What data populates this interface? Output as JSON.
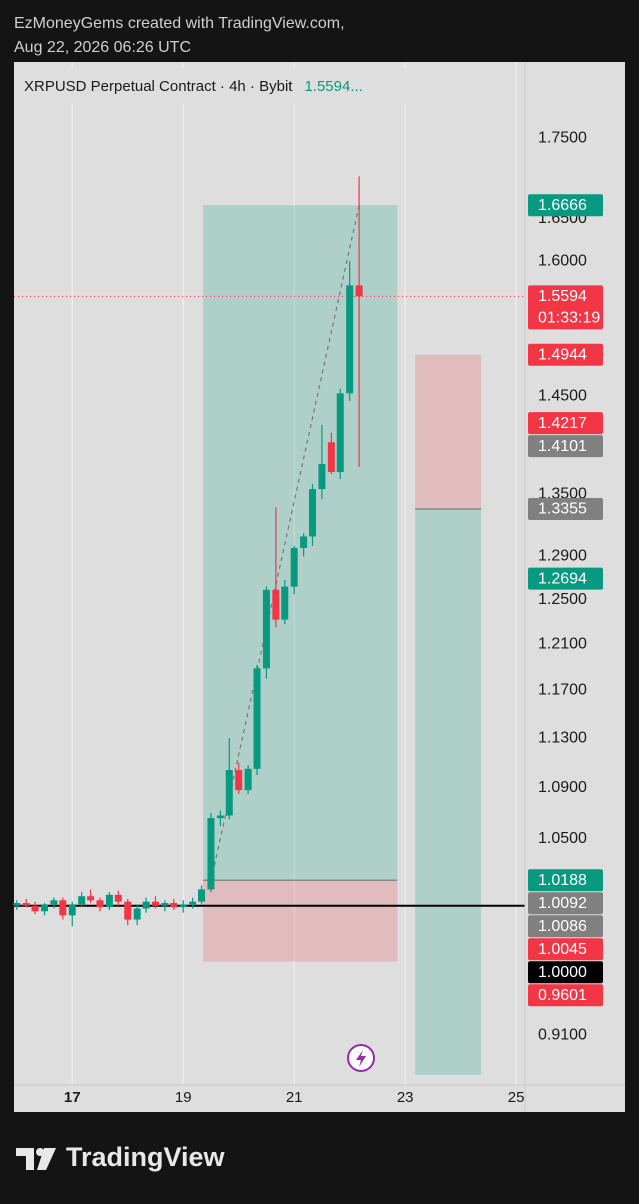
{
  "header": {
    "line1": "EzMoneyGems created with TradingView.com,",
    "line2": "Aug 22, 2026 06:26 UTC"
  },
  "chart_data": {
    "type": "candlestick",
    "title": "XRPUSD Perpetual Contract · 4h · Bybit",
    "legend_price": "1.5594...",
    "up_color": "#089981",
    "down_color": "#f23645",
    "log_scale": true,
    "grid": true,
    "x": [
      16,
      16.17,
      16.33,
      16.5,
      16.67,
      16.83,
      17,
      17.17,
      17.33,
      17.5,
      17.67,
      17.83,
      18,
      18.17,
      18.33,
      18.5,
      18.67,
      18.83,
      19,
      19.17,
      19.33,
      19.5,
      19.67,
      19.83,
      20,
      20.17,
      20.33,
      20.5,
      20.67,
      20.83,
      21,
      21.17,
      21.33,
      21.5,
      21.67,
      21.83,
      22,
      22.17
    ],
    "open": [
      1.0,
      1.002,
      1.0,
      0.996,
      1.001,
      1.004,
      0.993,
      1.001,
      1.007,
      1.004,
      0.999,
      1.008,
      1.003,
      0.99,
      0.998,
      1.003,
      1.0,
      1.002,
      0.999,
      1.001,
      1.003,
      1.012,
      1.066,
      1.068,
      1.104,
      1.088,
      1.105,
      1.189,
      1.259,
      1.232,
      1.262,
      1.298,
      1.309,
      1.355,
      1.402,
      1.372,
      1.453,
      1.572
    ],
    "high": [
      1.004,
      1.005,
      1.003,
      1.002,
      1.006,
      1.006,
      1.003,
      1.01,
      1.012,
      1.006,
      1.01,
      1.011,
      1.005,
      1.001,
      1.006,
      1.007,
      1.004,
      1.005,
      1.004,
      1.006,
      1.015,
      1.07,
      1.072,
      1.13,
      1.11,
      1.108,
      1.192,
      1.262,
      1.337,
      1.268,
      1.3,
      1.312,
      1.36,
      1.42,
      1.412,
      1.458,
      1.6,
      1.702
    ],
    "low": [
      0.997,
      0.999,
      0.994,
      0.993,
      0.998,
      0.99,
      0.985,
      0.999,
      1.002,
      0.996,
      0.997,
      1.0,
      0.986,
      0.986,
      0.995,
      0.998,
      0.996,
      0.997,
      0.995,
      0.998,
      1.001,
      1.01,
      1.06,
      1.065,
      1.085,
      1.085,
      1.1,
      1.18,
      1.225,
      1.228,
      1.255,
      1.29,
      1.3,
      1.345,
      1.37,
      1.365,
      1.445,
      1.377
    ],
    "close": [
      1.002,
      1.0,
      0.996,
      1.001,
      1.004,
      0.993,
      1.001,
      1.007,
      1.004,
      0.999,
      1.008,
      1.003,
      0.99,
      0.998,
      1.003,
      1.0,
      1.002,
      0.999,
      1.001,
      1.003,
      1.012,
      1.066,
      1.068,
      1.104,
      1.088,
      1.105,
      1.189,
      1.259,
      1.232,
      1.262,
      1.298,
      1.309,
      1.355,
      1.38,
      1.372,
      1.453,
      1.572,
      1.5594
    ],
    "xlim": [
      15.95,
      25.16
    ],
    "xticks": [
      17,
      19,
      21,
      23,
      25
    ],
    "ylim": [
      0.8775,
      1.85
    ],
    "yticks": [
      {
        "value": 0.91,
        "label": "0.9100"
      },
      {
        "value": 1.05,
        "label": "1.0500"
      },
      {
        "value": 1.09,
        "label": "1.0900"
      },
      {
        "value": 1.13,
        "label": "1.1300"
      },
      {
        "value": 1.17,
        "label": "1.1700"
      },
      {
        "value": 1.21,
        "label": "1.2100"
      },
      {
        "value": 1.25,
        "label": "1.2500"
      },
      {
        "value": 1.29,
        "label": "1.2900"
      },
      {
        "value": 1.35,
        "label": "1.3500"
      },
      {
        "value": 1.45,
        "label": "1.4500"
      },
      {
        "value": 1.6,
        "label": "1.6000"
      },
      {
        "value": 1.65,
        "label": "1.6500"
      },
      {
        "value": 1.75,
        "label": "1.7500"
      }
    ],
    "positions": [
      {
        "x": [
          19.36,
          22.86
        ],
        "target": 1.6666,
        "entry": 1.0188,
        "stop": 0.9601
      },
      {
        "x": [
          23.18,
          24.37
        ],
        "target": 0.884,
        "entry": 1.3355,
        "stop": 1.4944
      }
    ],
    "trend_line": {
      "x": [
        19.5,
        22.17
      ],
      "y": [
        1.018,
        1.6666
      ]
    },
    "last_price_line": {
      "value": 1.5594,
      "color": "#f23645"
    },
    "horizontal_line": {
      "value": 1.0,
      "color": "#000000"
    },
    "price_labels": [
      {
        "value": 1.6666,
        "label": "1.6666",
        "color": "#089981"
      },
      {
        "value": 1.5594,
        "label": "1.5594",
        "color": "#f23645",
        "countdown": "01:33:19"
      },
      {
        "value": 1.4944,
        "label": "1.4944",
        "color": "#f23645"
      },
      {
        "value": 1.4217,
        "label": "1.4217",
        "color": "#f23645"
      },
      {
        "value": 1.4101,
        "label": "1.4101",
        "color": "#808080"
      },
      {
        "value": 1.3355,
        "label": "1.3355",
        "color": "#808080"
      },
      {
        "value": 1.2694,
        "label": "1.2694",
        "color": "#089981"
      },
      {
        "value": 1.0188,
        "label": "1.0188",
        "color": "#089981"
      },
      {
        "value": 1.0092,
        "label": "1.0092",
        "color": "#808080"
      },
      {
        "value": 1.0086,
        "label": "1.0086",
        "color": "#808080"
      },
      {
        "value": 1.0045,
        "label": "1.0045",
        "color": "#f23645"
      },
      {
        "value": 1.0,
        "label": "1.0000",
        "color": "#000000"
      },
      {
        "value": 0.9601,
        "label": "0.9601",
        "color": "#f23645"
      }
    ]
  },
  "footer": {
    "brand": "TradingView"
  }
}
